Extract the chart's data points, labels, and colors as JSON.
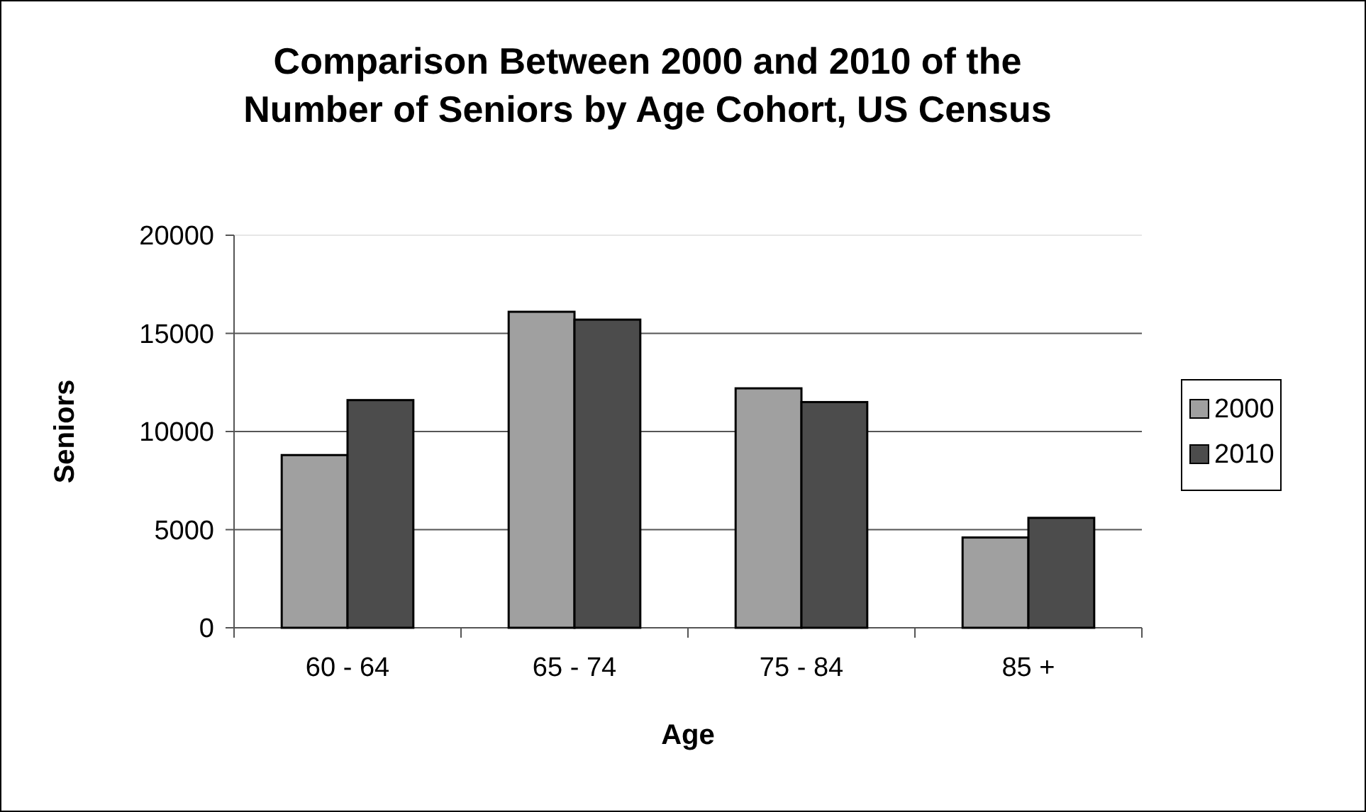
{
  "chart_data": {
    "type": "bar",
    "title": "Comparison Between 2000 and 2010 of the Number of Seniors by Age Cohort, US Census",
    "xlabel": "Age",
    "ylabel": "Seniors",
    "categories": [
      "60 - 64",
      "65 - 74",
      "75 - 84",
      "85 +"
    ],
    "series": [
      {
        "name": "2000",
        "color": "#a0a0a0",
        "values": [
          8800,
          16100,
          12200,
          4600
        ]
      },
      {
        "name": "2010",
        "color": "#4c4c4c",
        "values": [
          11600,
          15700,
          11500,
          5600
        ]
      }
    ],
    "ylim": [
      0,
      20000
    ],
    "yticks": [
      0,
      5000,
      10000,
      15000,
      20000
    ],
    "grid": "y",
    "legend": "right"
  }
}
